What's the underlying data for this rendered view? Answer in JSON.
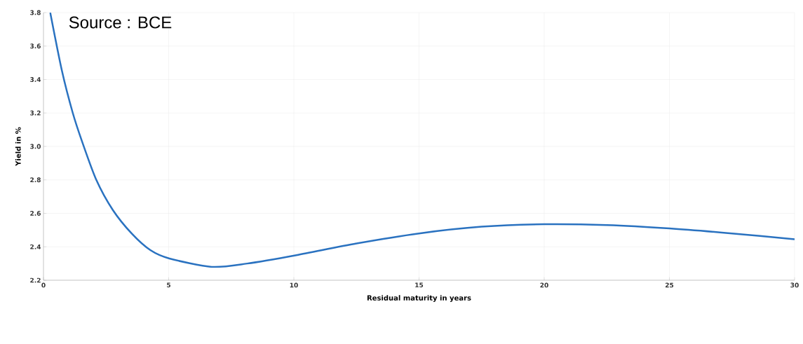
{
  "chart_data": {
    "type": "line",
    "xlabel": "Residual maturity in years",
    "ylabel": "Yield in %",
    "annotations": [
      "Source : BCE"
    ],
    "x": [
      0.27,
      0.74,
      1.17,
      1.54,
      2.11,
      2.77,
      3.52,
      4.27,
      5.03,
      6.72,
      8.14,
      10.1,
      12.5,
      15,
      17.5,
      20,
      22.5,
      25,
      27.5,
      30
    ],
    "series": [
      {
        "color": "#2a72c0",
        "values": [
          3.8,
          3.45,
          3.2,
          3.03,
          2.8,
          2.62,
          2.48,
          2.38,
          2.33,
          2.28,
          2.3,
          2.35,
          2.42,
          2.48,
          2.52,
          2.535,
          2.53,
          2.51,
          2.48,
          2.445
        ]
      }
    ],
    "xlim": [
      0,
      30
    ],
    "xticks": [
      0,
      5,
      10,
      15,
      20,
      25,
      30
    ],
    "ylim": [
      2.2,
      3.8
    ],
    "yticks": [
      {
        "value": 2.2,
        "label": "2.2"
      },
      {
        "value": 2.4,
        "label": "2.4"
      },
      {
        "value": 2.6,
        "label": "2.6"
      },
      {
        "value": 2.8,
        "label": "2.8"
      },
      {
        "value": 3.0,
        "label": "3.0"
      },
      {
        "value": 3.2,
        "label": "3.2"
      },
      {
        "value": 3.4,
        "label": "3.4"
      },
      {
        "value": 3.6,
        "label": "3.6"
      },
      {
        "value": 3.8,
        "label": "3.8"
      }
    ],
    "grid": true,
    "marker": "none",
    "line_style": "solid"
  }
}
